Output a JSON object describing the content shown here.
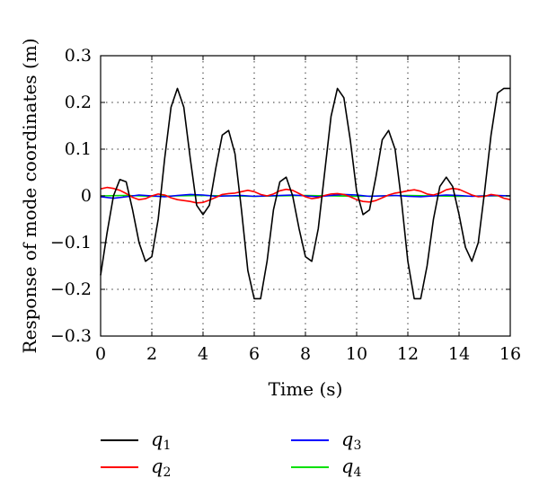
{
  "chart_data": {
    "type": "line",
    "xlabel": "Time (s)",
    "ylabel": "Response of mode coordinates (m)",
    "xlim": [
      0,
      16
    ],
    "ylim": [
      -0.3,
      0.3
    ],
    "xticks": [
      0,
      2,
      4,
      6,
      8,
      10,
      12,
      14,
      16
    ],
    "yticks": [
      -0.3,
      -0.2,
      -0.1,
      0,
      0.1,
      0.2,
      0.3
    ],
    "xtick_labels": [
      "0",
      "2",
      "4",
      "6",
      "8",
      "10",
      "12",
      "14",
      "16"
    ],
    "ytick_labels": [
      "−0.3",
      "−0.2",
      "−0.1",
      "0",
      "0.1",
      "0.2",
      "0.3"
    ],
    "grid": true,
    "legend_position": "below plot, two columns",
    "series": [
      {
        "name": "q1",
        "base": "q",
        "sub": "1",
        "color": "#000000",
        "x": [
          0,
          0.25,
          0.5,
          0.75,
          1.0,
          1.25,
          1.5,
          1.75,
          2.0,
          2.25,
          2.5,
          2.75,
          3.0,
          3.25,
          3.5,
          3.75,
          4.0,
          4.25,
          4.5,
          4.75,
          5.0,
          5.25,
          5.5,
          5.75,
          6.0,
          6.25,
          6.5,
          6.75,
          7.0,
          7.25,
          7.5,
          7.75,
          8.0,
          8.25,
          8.5,
          8.75,
          9.0,
          9.25,
          9.5,
          9.75,
          10.0,
          10.25,
          10.5,
          10.75,
          11.0,
          11.25,
          11.5,
          11.75,
          12.0,
          12.25,
          12.5,
          12.75,
          13.0,
          13.25,
          13.5,
          13.75,
          14.0,
          14.25,
          14.5,
          14.75,
          15.0,
          15.25,
          15.5,
          15.75,
          16.0
        ],
        "y": [
          -0.17,
          -0.08,
          0.0,
          0.035,
          0.03,
          -0.03,
          -0.1,
          -0.14,
          -0.13,
          -0.05,
          0.08,
          0.19,
          0.23,
          0.19,
          0.08,
          -0.02,
          -0.04,
          -0.02,
          0.06,
          0.13,
          0.14,
          0.09,
          -0.03,
          -0.16,
          -0.22,
          -0.22,
          -0.14,
          -0.03,
          0.03,
          0.04,
          0.0,
          -0.07,
          -0.13,
          -0.14,
          -0.07,
          0.05,
          0.17,
          0.23,
          0.21,
          0.12,
          0.01,
          -0.04,
          -0.03,
          0.04,
          0.12,
          0.14,
          0.1,
          -0.01,
          -0.14,
          -0.22,
          -0.22,
          -0.15,
          -0.05,
          0.02,
          0.04,
          0.02,
          -0.04,
          -0.11,
          -0.14,
          -0.1,
          0.01,
          0.13,
          0.22,
          0.23,
          0.23
        ]
      },
      {
        "name": "q2",
        "base": "q",
        "sub": "2",
        "color": "#ff0000",
        "x": [
          0,
          0.25,
          0.5,
          0.75,
          1.0,
          1.25,
          1.5,
          1.75,
          2.0,
          2.25,
          2.5,
          2.75,
          3.0,
          3.25,
          3.5,
          3.75,
          4.0,
          4.25,
          4.5,
          4.75,
          5.0,
          5.25,
          5.5,
          5.75,
          6.0,
          6.25,
          6.5,
          6.75,
          7.0,
          7.25,
          7.5,
          7.75,
          8.0,
          8.25,
          8.5,
          8.75,
          9.0,
          9.25,
          9.5,
          9.75,
          10.0,
          10.25,
          10.5,
          10.75,
          11.0,
          11.25,
          11.5,
          11.75,
          12.0,
          12.25,
          12.5,
          12.75,
          13.0,
          13.25,
          13.5,
          13.75,
          14.0,
          14.25,
          14.5,
          14.75,
          15.0,
          15.25,
          15.5,
          15.75,
          16.0
        ],
        "y": [
          0.015,
          0.018,
          0.016,
          0.012,
          0.005,
          -0.003,
          -0.008,
          -0.006,
          0.0,
          0.004,
          0.002,
          -0.004,
          -0.008,
          -0.01,
          -0.012,
          -0.015,
          -0.014,
          -0.009,
          -0.003,
          0.003,
          0.005,
          0.006,
          0.009,
          0.012,
          0.009,
          0.003,
          0.0,
          0.004,
          0.011,
          0.014,
          0.012,
          0.005,
          -0.002,
          -0.006,
          -0.004,
          0.001,
          0.004,
          0.005,
          0.003,
          -0.002,
          -0.008,
          -0.012,
          -0.013,
          -0.01,
          -0.004,
          0.002,
          0.006,
          0.008,
          0.011,
          0.013,
          0.01,
          0.004,
          0.002,
          0.006,
          0.013,
          0.016,
          0.014,
          0.008,
          0.002,
          -0.002,
          -0.001,
          0.003,
          0.001,
          -0.005,
          -0.008
        ]
      },
      {
        "name": "q3",
        "base": "q",
        "sub": "3",
        "color": "#0000ff",
        "x": [
          0,
          0.5,
          1.0,
          1.5,
          2.0,
          2.5,
          3.0,
          3.5,
          4.0,
          4.5,
          5.0,
          5.5,
          6.0,
          6.5,
          7.0,
          7.5,
          8.0,
          8.5,
          9.0,
          9.5,
          10.0,
          10.5,
          11.0,
          11.5,
          12.0,
          12.5,
          13.0,
          13.5,
          14.0,
          14.5,
          15.0,
          15.5,
          16.0
        ],
        "y": [
          -0.002,
          -0.005,
          -0.002,
          0.002,
          0.0,
          -0.002,
          0.001,
          0.003,
          0.002,
          -0.001,
          0.0,
          0.001,
          -0.001,
          0.0,
          0.001,
          0.002,
          0.0,
          -0.002,
          0.001,
          0.003,
          0.002,
          -0.001,
          0.0,
          0.001,
          -0.001,
          -0.002,
          0.0,
          0.002,
          0.001,
          -0.001,
          0.0,
          0.001,
          0.0
        ]
      },
      {
        "name": "q4",
        "base": "q",
        "sub": "4",
        "color": "#00e000",
        "x": [
          0,
          1.0,
          2.0,
          3.0,
          4.0,
          5.0,
          6.0,
          7.0,
          8.0,
          9.0,
          10.0,
          11.0,
          12.0,
          13.0,
          14.0,
          15.0,
          16.0
        ],
        "y": [
          0.0,
          0.001,
          -0.001,
          0.0,
          0.001,
          0.0,
          -0.001,
          0.0,
          0.001,
          0.0,
          -0.001,
          0.0,
          0.001,
          0.0,
          -0.001,
          0.0,
          0.0
        ]
      }
    ]
  }
}
